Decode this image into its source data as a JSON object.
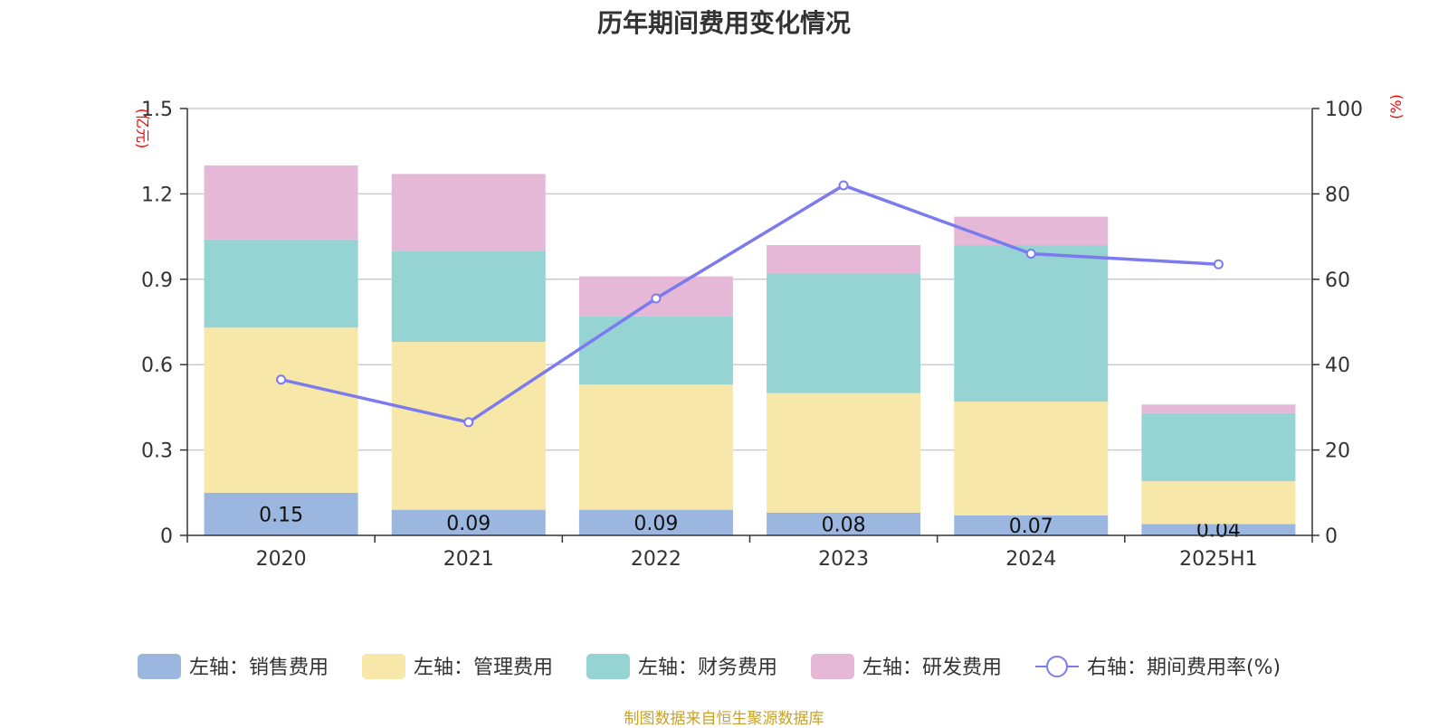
{
  "title": "历年期间费用变化情况",
  "source": "制图数据来自恒生聚源数据库",
  "chart_data": {
    "type": "bar",
    "stacked": true,
    "title": "历年期间费用变化情况",
    "categories": [
      "2020",
      "2021",
      "2022",
      "2023",
      "2024",
      "2025H1"
    ],
    "left_axis": {
      "unit": "(亿元)",
      "ylim": [
        0,
        1.5
      ],
      "ticks": [
        "0",
        "0.3",
        "0.6",
        "0.9",
        "1.2",
        "1.5"
      ]
    },
    "right_axis": {
      "unit": "(%)",
      "ylim": [
        0,
        100
      ],
      "ticks": [
        "0",
        "20",
        "40",
        "60",
        "80",
        "100"
      ]
    },
    "series": [
      {
        "name": "左轴：销售费用",
        "axis": "left",
        "type": "bar",
        "color": "#9bb7e0",
        "values": [
          0.15,
          0.09,
          0.09,
          0.08,
          0.07,
          0.04
        ],
        "labels": [
          "0.15",
          "0.09",
          "0.09",
          "0.08",
          "0.07",
          "0.04"
        ]
      },
      {
        "name": "左轴：管理费用",
        "axis": "left",
        "type": "bar",
        "color": "#f7e7a8",
        "values": [
          0.58,
          0.59,
          0.44,
          0.42,
          0.4,
          0.15
        ]
      },
      {
        "name": "左轴：财务费用",
        "axis": "left",
        "type": "bar",
        "color": "#96d3d3",
        "values": [
          0.31,
          0.32,
          0.24,
          0.42,
          0.55,
          0.24
        ]
      },
      {
        "name": "左轴：研发费用",
        "axis": "left",
        "type": "bar",
        "color": "#e6b8d8",
        "values": [
          0.26,
          0.27,
          0.14,
          0.1,
          0.1,
          0.03
        ]
      },
      {
        "name": "右轴：期间费用率(%)",
        "axis": "right",
        "type": "line",
        "color": "#7b7bef",
        "values": [
          36.5,
          26.5,
          55.5,
          82.0,
          66.0,
          63.5
        ]
      }
    ],
    "grid": true,
    "legend_position": "bottom"
  }
}
